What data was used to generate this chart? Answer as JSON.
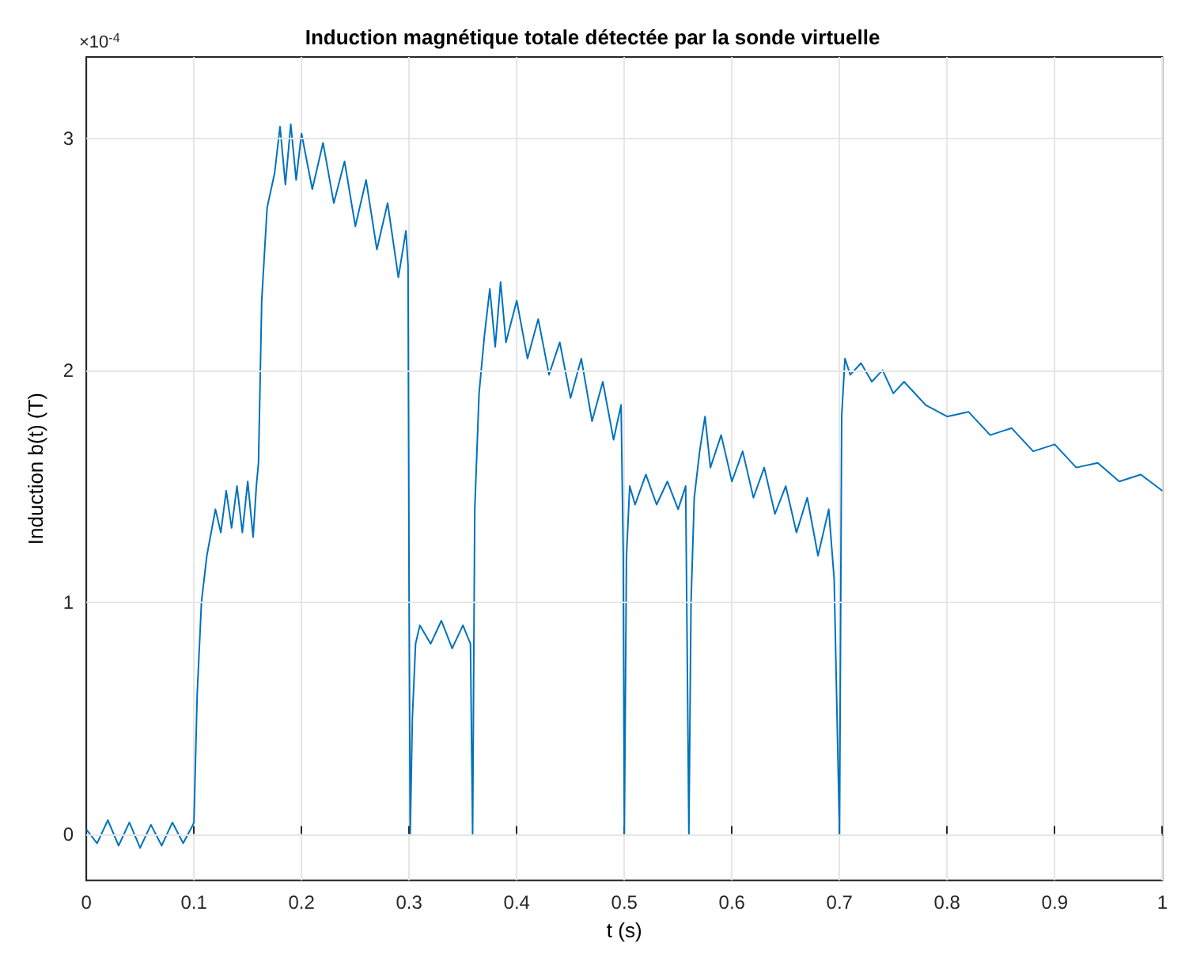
{
  "chart_data": {
    "type": "line",
    "title": "Induction magnétique totale détectée par la sonde virtuelle",
    "xlabel": "t (s)",
    "ylabel": "Induction b(t) (T)",
    "annotations": [
      "×10$^{-4}$"
    ],
    "x": [
      0,
      0.01,
      0.02,
      0.03,
      0.04,
      0.05,
      0.06,
      0.07,
      0.08,
      0.09,
      0.098,
      0.1,
      0.103,
      0.107,
      0.112,
      0.12,
      0.125,
      0.13,
      0.135,
      0.14,
      0.145,
      0.15,
      0.155,
      0.158,
      0.16,
      0.163,
      0.168,
      0.175,
      0.18,
      0.185,
      0.19,
      0.195,
      0.2,
      0.21,
      0.22,
      0.23,
      0.24,
      0.25,
      0.26,
      0.27,
      0.28,
      0.29,
      0.297,
      0.299,
      0.3,
      0.301,
      0.303,
      0.306,
      0.31,
      0.32,
      0.33,
      0.34,
      0.35,
      0.357,
      0.359,
      0.361,
      0.365,
      0.37,
      0.375,
      0.38,
      0.385,
      0.39,
      0.4,
      0.41,
      0.42,
      0.43,
      0.44,
      0.45,
      0.46,
      0.47,
      0.48,
      0.49,
      0.497,
      0.499,
      0.5,
      0.502,
      0.505,
      0.51,
      0.52,
      0.53,
      0.54,
      0.55,
      0.557,
      0.56,
      0.562,
      0.565,
      0.57,
      0.575,
      0.58,
      0.59,
      0.6,
      0.61,
      0.62,
      0.63,
      0.64,
      0.65,
      0.66,
      0.67,
      0.68,
      0.69,
      0.695,
      0.7,
      0.702,
      0.705,
      0.71,
      0.72,
      0.73,
      0.74,
      0.75,
      0.76,
      0.78,
      0.8,
      0.82,
      0.84,
      0.86,
      0.88,
      0.9,
      0.92,
      0.94,
      0.96,
      0.98,
      1.0
    ],
    "series": [
      {
        "color": "#0072bd",
        "values": [
          0.02,
          -0.04,
          0.06,
          -0.05,
          0.05,
          -0.06,
          0.04,
          -0.05,
          0.05,
          -0.04,
          0.03,
          0.05,
          0.6,
          1.0,
          1.2,
          1.4,
          1.3,
          1.48,
          1.32,
          1.5,
          1.3,
          1.52,
          1.28,
          1.5,
          1.6,
          2.3,
          2.7,
          2.85,
          3.05,
          2.8,
          3.06,
          2.82,
          3.02,
          2.78,
          2.98,
          2.72,
          2.9,
          2.62,
          2.82,
          2.52,
          2.72,
          2.4,
          2.6,
          2.45,
          1.0,
          0.0,
          0.5,
          0.82,
          0.9,
          0.82,
          0.92,
          0.8,
          0.9,
          0.82,
          0.0,
          1.4,
          1.9,
          2.15,
          2.35,
          2.1,
          2.38,
          2.12,
          2.3,
          2.05,
          2.22,
          1.98,
          2.12,
          1.88,
          2.05,
          1.78,
          1.95,
          1.7,
          1.85,
          1.2,
          0.0,
          1.2,
          1.5,
          1.42,
          1.55,
          1.42,
          1.52,
          1.4,
          1.5,
          0.0,
          1.0,
          1.45,
          1.65,
          1.8,
          1.58,
          1.72,
          1.52,
          1.65,
          1.45,
          1.58,
          1.38,
          1.5,
          1.3,
          1.45,
          1.2,
          1.4,
          1.1,
          0.0,
          1.8,
          2.05,
          1.98,
          2.03,
          1.95,
          2.0,
          1.9,
          1.95,
          1.85,
          1.8,
          1.82,
          1.72,
          1.75,
          1.65,
          1.68,
          1.58,
          1.6,
          1.52,
          1.55,
          1.48
        ]
      }
    ],
    "xlim": [
      0,
      1
    ],
    "xticks": [
      0,
      0.1,
      0.2,
      0.3,
      0.4,
      0.5,
      0.6,
      0.7,
      0.8,
      0.9,
      1
    ],
    "ylim": [
      -0.2,
      3.35
    ],
    "yticks": [
      0,
      1,
      2,
      3
    ],
    "grid": true,
    "marker": "none",
    "line_style": "solid"
  }
}
